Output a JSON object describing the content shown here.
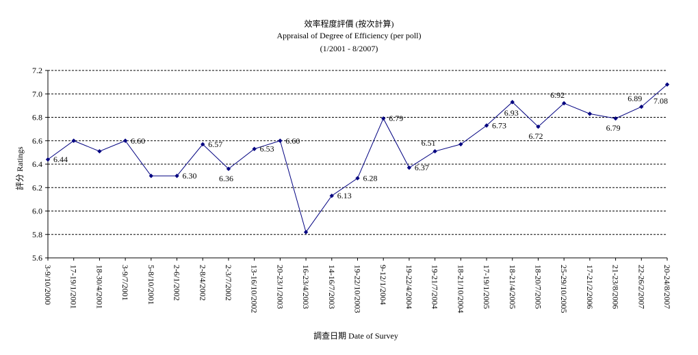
{
  "chart_data": {
    "type": "line",
    "title": "效率程度評價 (按次計算)",
    "subtitle": "Appraisal of Degree of Efficiency (per poll)",
    "period": "(1/2001 - 8/2007)",
    "xlabel": "調查日期 Date of Survey",
    "ylabel": "評分 Ratings",
    "ylim": [
      5.6,
      7.2
    ],
    "yticks": [
      "5.6",
      "5.8",
      "6.0",
      "6.2",
      "6.4",
      "6.6",
      "6.8",
      "7.0",
      "7.2"
    ],
    "grid": true,
    "categories": [
      "3-9/10/2000",
      "17-19/1/2001",
      "18-30/4/2001",
      "3-9/7/2001",
      "5-8/10/2001",
      "2-6/1/2002",
      "2-8/4/2002",
      "2-3/7/2002",
      "13-16/10/2002",
      "20-23/1/2003",
      "16-23/4/2003",
      "14-16/7/2003",
      "19-22/10/2003",
      "9-12/1/2004",
      "19-22/4/2004",
      "19-21/7/2004",
      "18-21/10/2004",
      "17-19/1/2005",
      "18-21/4/2005",
      "18-20/7/2005",
      "25-29/10/2005",
      "17-21/2/2006",
      "21-23/8/2006",
      "22-26/2/2007",
      "20-24/8/2007"
    ],
    "series": [
      {
        "color": "#000080",
        "values": [
          6.44,
          6.6,
          6.51,
          6.6,
          6.3,
          6.3,
          6.57,
          6.36,
          6.53,
          6.6,
          5.82,
          6.13,
          6.28,
          6.79,
          6.37,
          6.51,
          6.57,
          6.73,
          6.93,
          6.72,
          6.92,
          6.83,
          6.79,
          6.89,
          7.08
        ]
      }
    ],
    "data_labels": [
      {
        "index": 0,
        "text": "6.44"
      },
      {
        "index": 3,
        "text": "6.60"
      },
      {
        "index": 5,
        "text": "6.30"
      },
      {
        "index": 6,
        "text": "6.57"
      },
      {
        "index": 7,
        "text": "6.36"
      },
      {
        "index": 8,
        "text": "6.53"
      },
      {
        "index": 9,
        "text": "6.60"
      },
      {
        "index": 11,
        "text": "6.13"
      },
      {
        "index": 12,
        "text": "6.28"
      },
      {
        "index": 13,
        "text": "6.79"
      },
      {
        "index": 14,
        "text": "6.37"
      },
      {
        "index": 15,
        "text": "6.51"
      },
      {
        "index": 17,
        "text": "6.73"
      },
      {
        "index": 18,
        "text": "6.93"
      },
      {
        "index": 19,
        "text": "6.72"
      },
      {
        "index": 20,
        "text": "6.92"
      },
      {
        "index": 22,
        "text": "6.79"
      },
      {
        "index": 23,
        "text": "6.89"
      },
      {
        "index": 24,
        "text": "7.08"
      }
    ]
  }
}
